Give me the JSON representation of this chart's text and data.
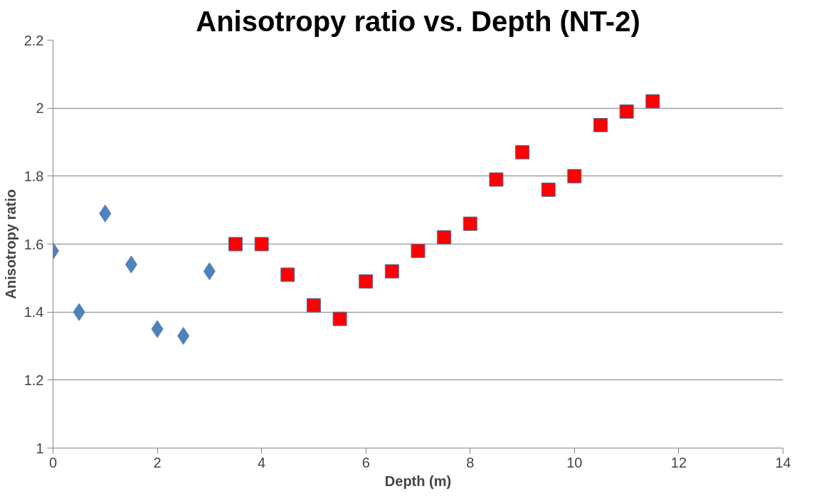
{
  "chart_data": {
    "type": "scatter",
    "title": "Anisotropy ratio vs. Depth (NT-2)",
    "xlabel": "Depth (m)",
    "ylabel": "Anisotropy ratio",
    "xlim": [
      0,
      14
    ],
    "xticks": [
      0,
      2,
      4,
      6,
      8,
      10,
      12,
      14
    ],
    "ylim": [
      1,
      2.2
    ],
    "yticks": [
      1,
      1.2,
      1.4,
      1.6,
      1.8,
      2,
      2.2
    ],
    "grid": "y",
    "series": [
      {
        "color": "#4f81bd",
        "marker": "diamond",
        "x": [
          0,
          0.5,
          1,
          1.5,
          2,
          2.5,
          3
        ],
        "values": [
          1.58,
          1.4,
          1.69,
          1.54,
          1.35,
          1.33,
          1.52
        ]
      },
      {
        "color": "#ff0000",
        "marker": "square",
        "x": [
          3.5,
          4,
          4.5,
          5,
          5.5,
          6,
          6.5,
          7,
          7.5,
          8,
          8.5,
          9,
          9.5,
          10,
          10.5,
          11,
          11.5
        ],
        "values": [
          1.6,
          1.6,
          1.51,
          1.42,
          1.38,
          1.49,
          1.52,
          1.58,
          1.62,
          1.66,
          1.79,
          1.87,
          1.76,
          1.8,
          1.95,
          1.99,
          2.02
        ]
      }
    ]
  }
}
